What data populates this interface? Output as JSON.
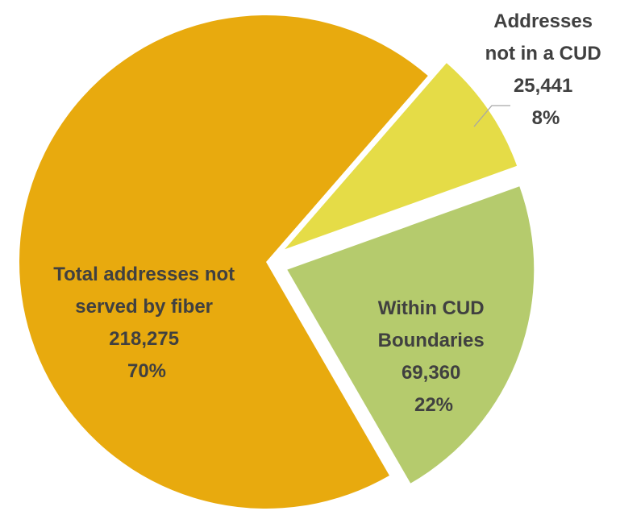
{
  "chart_data": {
    "type": "pie",
    "slices": [
      {
        "label_lines": [
          "Total addresses not",
          "served by fiber"
        ],
        "value": 218275,
        "value_label": "218,275",
        "percent": 70,
        "percent_label": "70%",
        "color": "#E8AA0E",
        "exploded": false
      },
      {
        "label_lines": [
          "Addresses",
          "not in a CUD"
        ],
        "value": 25441,
        "value_label": "25,441",
        "percent": 8,
        "percent_label": "8%",
        "color": "#E5DC47",
        "exploded": true
      },
      {
        "label_lines": [
          "Within CUD",
          "Boundaries"
        ],
        "value": 69360,
        "value_label": "69,360",
        "percent": 22,
        "percent_label": "22%",
        "color": "#B5CB6D",
        "exploded": true
      }
    ],
    "legend": "none",
    "label_color": "#404040",
    "leader_line_color": "#A6A6A6"
  }
}
